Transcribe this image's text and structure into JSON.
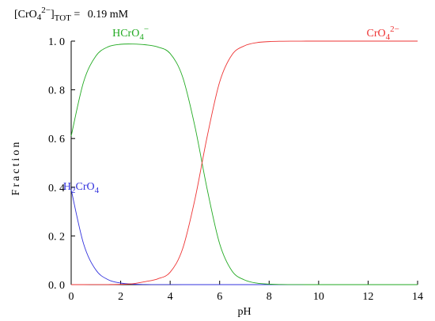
{
  "header": {
    "total_label_base": "[CrO",
    "total_label_sub1": "4",
    "total_label_sup": "2−",
    "total_label_close": "]",
    "total_label_sub2": "TOT",
    "total_label_eq": " = ",
    "total_value": "0.19 mM"
  },
  "chart_data": {
    "type": "line",
    "xlabel": "pH",
    "ylabel": "Fraction",
    "xlim": [
      0,
      14
    ],
    "ylim": [
      0,
      1
    ],
    "xticks": [
      0,
      2,
      4,
      6,
      8,
      10,
      12,
      14
    ],
    "yticks": [
      0.0,
      0.2,
      0.4,
      0.6,
      0.8,
      1.0
    ],
    "xtick_labels": [
      "0",
      "2",
      "4",
      "6",
      "8",
      "10",
      "12",
      "14"
    ],
    "ytick_labels": [
      "0. 0",
      "0. 2",
      "0. 4",
      "0. 6",
      "0. 8",
      "1. 0"
    ],
    "x": [
      0,
      0.5,
      1,
      1.5,
      2,
      2.5,
      3,
      3.5,
      4,
      4.5,
      5,
      5.5,
      6,
      6.5,
      7,
      7.5,
      8,
      8.5,
      9,
      9.5,
      10,
      10.5,
      11,
      11.5,
      12,
      12.5,
      13,
      13.5,
      14
    ],
    "series": [
      {
        "name": "H2CrO4",
        "label_parts": [
          "H",
          "2",
          "CrO",
          "4"
        ],
        "label_at": [
          0.4,
          0.39
        ],
        "color": "#3333dd",
        "values": [
          0.39,
          0.168,
          0.06,
          0.02,
          0.0065,
          0.002,
          0.0006,
          0.0002,
          0.0001,
          0,
          0,
          0,
          0,
          0,
          0,
          0,
          0,
          0,
          0,
          0,
          0,
          0,
          0,
          0,
          0,
          0,
          0,
          0,
          0
        ]
      },
      {
        "name": "HCrO4-",
        "label_parts": [
          "HCrO",
          "4",
          "−"
        ],
        "label_at": [
          2.4,
          1.02
        ],
        "color": "#22aa22",
        "values": [
          0.61,
          0.832,
          0.939,
          0.977,
          0.987,
          0.988,
          0.985,
          0.976,
          0.949,
          0.854,
          0.65,
          0.39,
          0.168,
          0.056,
          0.0195,
          0.0062,
          0.002,
          0.0006,
          0.0002,
          0,
          0,
          0,
          0,
          0,
          0,
          0,
          0,
          0,
          0
        ]
      },
      {
        "name": "CrO4 2-",
        "label_parts": [
          "CrO",
          "4",
          "2−"
        ],
        "label_at": [
          12.6,
          1.02
        ],
        "color": "#ee3333",
        "values": [
          0,
          0,
          0.0001,
          0.0003,
          0.0012,
          0.004,
          0.0125,
          0.0238,
          0.051,
          0.146,
          0.35,
          0.61,
          0.832,
          0.944,
          0.9805,
          0.9938,
          0.998,
          0.9994,
          0.9998,
          1.0,
          1.0,
          1.0,
          1.0,
          1.0,
          1.0,
          1.0,
          1.0,
          1.0,
          1.0
        ]
      }
    ],
    "grid": false,
    "legend": "inline labels"
  }
}
